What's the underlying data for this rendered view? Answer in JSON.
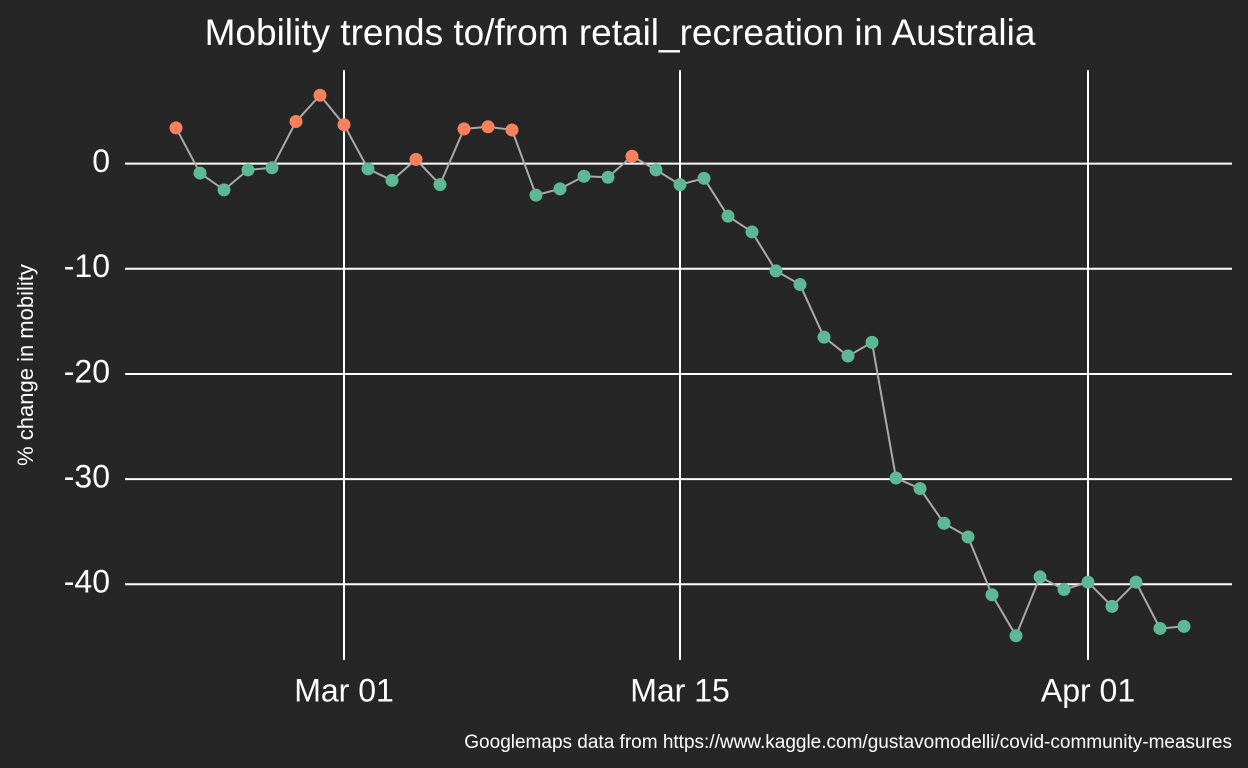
{
  "chart_data": {
    "type": "line",
    "title": "Mobility trends to/from retail_recreation in Australia",
    "y_label": "% change in mobility",
    "caption": "Googlemaps data from https://www.kaggle.com/gustavomodelli/covid-community-measures",
    "categories": [
      null,
      null,
      null,
      null,
      null,
      null,
      null,
      "Mar 01",
      null,
      null,
      null,
      null,
      null,
      null,
      null,
      null,
      null,
      null,
      null,
      null,
      null,
      "Mar 15",
      null,
      null,
      null,
      null,
      null,
      null,
      null,
      null,
      null,
      null,
      null,
      null,
      null,
      null,
      null,
      null,
      "Apr 01",
      null,
      null,
      null,
      null
    ],
    "values": [
      3.4,
      -0.9,
      -2.5,
      -0.6,
      -0.4,
      4.0,
      6.5,
      3.7,
      -0.5,
      -1.6,
      0.4,
      -2.0,
      3.3,
      3.5,
      3.2,
      -3.0,
      -2.4,
      -1.2,
      -1.3,
      0.7,
      -0.6,
      -2.0,
      -1.4,
      -5.0,
      -6.5,
      -10.2,
      -11.5,
      -16.5,
      -18.3,
      -17.0,
      -29.9,
      -30.9,
      -34.2,
      -35.5,
      -41.0,
      -44.9,
      -39.3,
      -40.5,
      -39.8,
      -42.1,
      -39.8,
      -44.2,
      -44.0
    ],
    "line_color": "#aaaaaa",
    "color_above_zero": "#f8805c",
    "color_below_zero": "#5cb896",
    "ylim": [
      -47.2,
      8.9
    ],
    "yticks": [
      0,
      -10,
      -20,
      -30,
      -40
    ],
    "grid": true
  }
}
